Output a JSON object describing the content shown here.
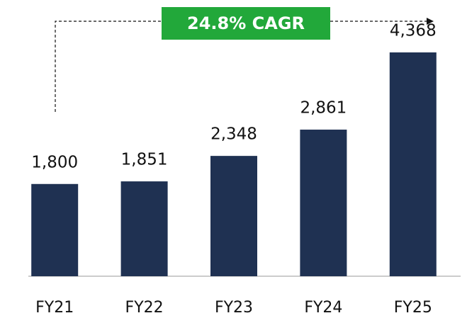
{
  "chart_data": {
    "type": "bar",
    "categories": [
      "FY21",
      "FY22",
      "FY23",
      "FY24",
      "FY25"
    ],
    "values": [
      1800,
      1851,
      2348,
      2861,
      4368
    ],
    "value_labels": [
      "1,800",
      "1,851",
      "2,348",
      "2,861",
      "4,368"
    ],
    "color": "#1f3152",
    "annotation": "24.8% CAGR",
    "annotation_color": "#22a83a"
  }
}
